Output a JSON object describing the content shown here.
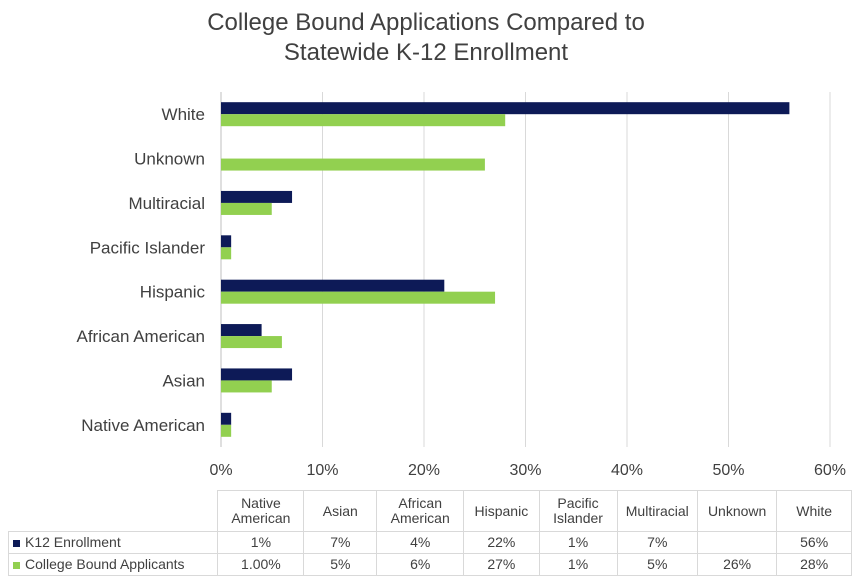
{
  "title": [
    "College Bound Applications Compared to",
    "Statewide K-12 Enrollment"
  ],
  "chart_data": {
    "type": "bar",
    "orientation": "horizontal",
    "categories": [
      "Native American",
      "Asian",
      "African American",
      "Hispanic",
      "Pacific Islander",
      "Multiracial",
      "Unknown",
      "White"
    ],
    "series": [
      {
        "name": "K12 Enrollment",
        "color": "#0d1a57",
        "values": [
          1,
          7,
          4,
          22,
          1,
          7,
          null,
          56
        ]
      },
      {
        "name": "College Bound Applicants",
        "color": "#92d050",
        "values": [
          1,
          5,
          6,
          27,
          1,
          5,
          26,
          28
        ]
      }
    ],
    "xlim": [
      0,
      60
    ],
    "xticks": [
      "0%",
      "10%",
      "20%",
      "30%",
      "40%",
      "50%",
      "60%"
    ],
    "grid": true,
    "legend": "data table below chart"
  },
  "table": {
    "headers": [
      [
        "Native",
        "American"
      ],
      [
        "Asian"
      ],
      [
        "African",
        "American"
      ],
      [
        "Hispanic"
      ],
      [
        "Pacific",
        "Islander"
      ],
      [
        "Multiracial"
      ],
      [
        "Unknown"
      ],
      [
        "White"
      ]
    ],
    "rows": [
      {
        "label": "K12 Enrollment",
        "color": "#0d1a57",
        "cells": [
          "1%",
          "7%",
          "4%",
          "22%",
          "1%",
          "7%",
          "",
          "56%"
        ]
      },
      {
        "label": "College Bound Applicants",
        "color": "#92d050",
        "cells": [
          "1.00%",
          "5%",
          "6%",
          "27%",
          "1%",
          "5%",
          "26%",
          "28%"
        ]
      }
    ]
  }
}
